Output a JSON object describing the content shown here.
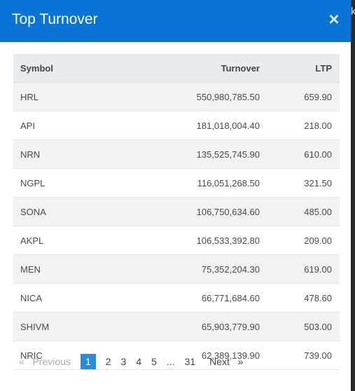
{
  "modal": {
    "title": "Top Turnover",
    "close_glyph": "×"
  },
  "table": {
    "headers": {
      "symbol": "Symbol",
      "turnover": "Turnover",
      "ltp": "LTP"
    },
    "rows": [
      {
        "symbol": "HRL",
        "turnover": "550,980,785.50",
        "ltp": "659.90"
      },
      {
        "symbol": "API",
        "turnover": "181,018,004.40",
        "ltp": "218.00"
      },
      {
        "symbol": "NRN",
        "turnover": "135,525,745.90",
        "ltp": "610.00"
      },
      {
        "symbol": "NGPL",
        "turnover": "116,051,268.50",
        "ltp": "321.50"
      },
      {
        "symbol": "SONA",
        "turnover": "106,750,634.60",
        "ltp": "485.00"
      },
      {
        "symbol": "AKPL",
        "turnover": "106,533,392.80",
        "ltp": "209.00"
      },
      {
        "symbol": "MEN",
        "turnover": "75,352,204.30",
        "ltp": "619.00"
      },
      {
        "symbol": "NICA",
        "turnover": "66,771,684.60",
        "ltp": "478.60"
      },
      {
        "symbol": "SHIVM",
        "turnover": "65,903,779.90",
        "ltp": "503.00"
      },
      {
        "symbol": "NRIC",
        "turnover": "62,389,139.90",
        "ltp": "739.00"
      }
    ]
  },
  "pagination": {
    "prev_glyph": "«",
    "prev_label": "Previous",
    "pages": [
      "1",
      "2",
      "3",
      "4",
      "5"
    ],
    "ellipsis": "...",
    "last": "31",
    "next_label": "Next",
    "next_glyph": "»",
    "current": "1"
  },
  "backdrop": {
    "edge_letter": "k"
  },
  "colors": {
    "header": "#0a74d6",
    "active_page": "#2a8bdb"
  }
}
